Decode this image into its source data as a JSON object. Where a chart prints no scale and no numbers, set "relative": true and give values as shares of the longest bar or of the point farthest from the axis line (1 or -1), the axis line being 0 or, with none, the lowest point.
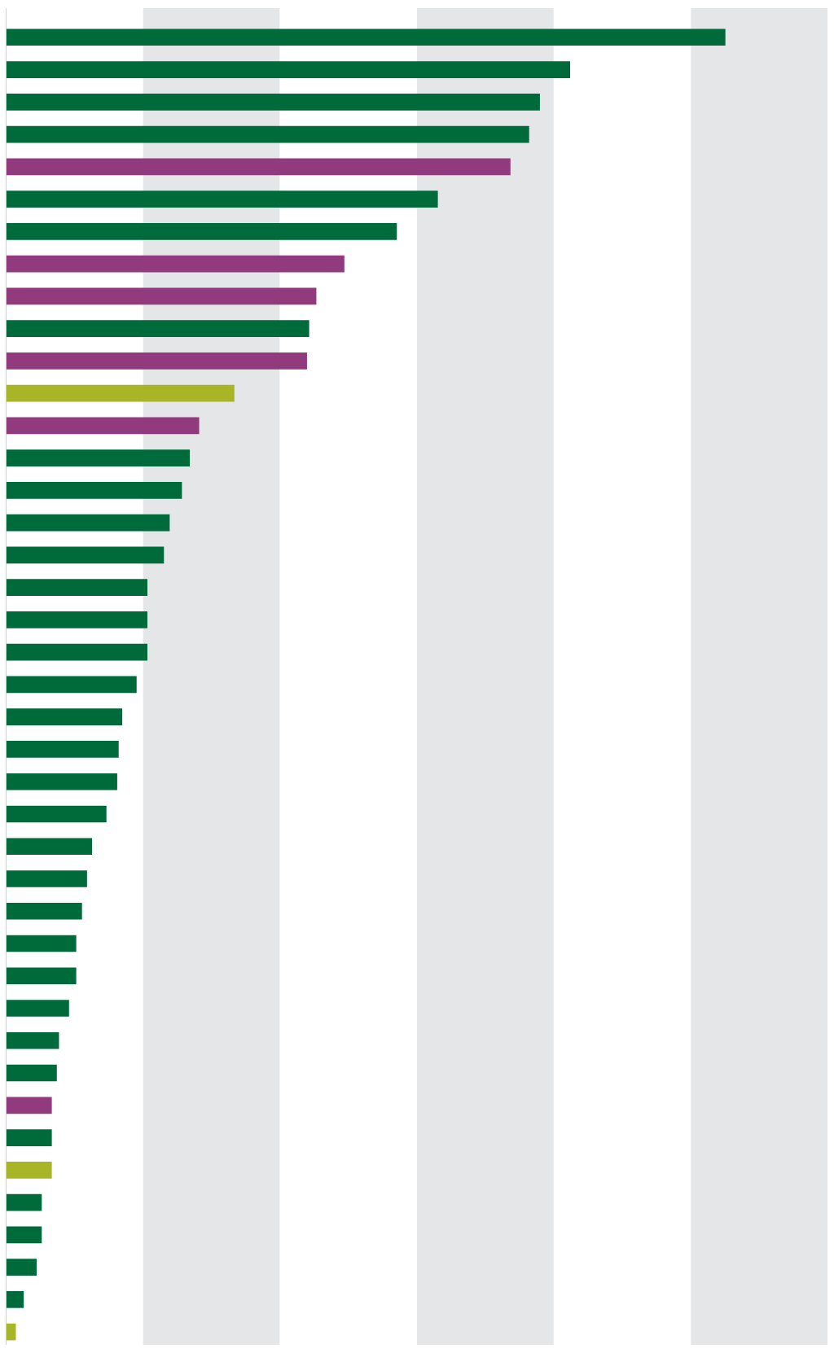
{
  "chart_data": {
    "type": "bar",
    "orientation": "horizontal",
    "relative": true,
    "categories": [
      null,
      null,
      null,
      null,
      null,
      null,
      null,
      null,
      null,
      null,
      null,
      null,
      null,
      null,
      null,
      null,
      null,
      null,
      null,
      null,
      null,
      null,
      null,
      null,
      null,
      null,
      null,
      null,
      null,
      null,
      null,
      null,
      null,
      null,
      null,
      null,
      null,
      null,
      null,
      null,
      null
    ],
    "values": [
      1.0,
      0.784,
      0.742,
      0.727,
      0.701,
      0.6,
      0.543,
      0.47,
      0.431,
      0.421,
      0.418,
      0.317,
      0.268,
      0.255,
      0.244,
      0.227,
      0.219,
      0.196,
      0.196,
      0.196,
      0.181,
      0.161,
      0.156,
      0.154,
      0.139,
      0.119,
      0.112,
      0.105,
      0.097,
      0.097,
      0.087,
      0.073,
      0.07,
      0.063,
      0.063,
      0.063,
      0.049,
      0.049,
      0.042,
      0.024,
      0.013
    ],
    "colors": [
      "#006b3a",
      "#006b3a",
      "#006b3a",
      "#006b3a",
      "#923a7e",
      "#006b3a",
      "#006b3a",
      "#923a7e",
      "#923a7e",
      "#006b3a",
      "#923a7e",
      "#a8b526",
      "#923a7e",
      "#006b3a",
      "#006b3a",
      "#006b3a",
      "#006b3a",
      "#006b3a",
      "#006b3a",
      "#006b3a",
      "#006b3a",
      "#006b3a",
      "#006b3a",
      "#006b3a",
      "#006b3a",
      "#006b3a",
      "#006b3a",
      "#006b3a",
      "#006b3a",
      "#006b3a",
      "#006b3a",
      "#006b3a",
      "#006b3a",
      "#923a7e",
      "#006b3a",
      "#a8b526",
      "#006b3a",
      "#006b3a",
      "#006b3a",
      "#006b3a",
      "#a8b526"
    ],
    "bands": [
      {
        "axis": "x",
        "from": 0.19,
        "to": 0.38,
        "color": "#e5e6e8"
      },
      {
        "axis": "x",
        "from": 0.571,
        "to": 0.761,
        "color": "#e5e6e8"
      },
      {
        "axis": "x",
        "from": 0.952,
        "to": 1.142,
        "color": "#e5e6e8"
      }
    ],
    "grid": false,
    "legend": false
  }
}
